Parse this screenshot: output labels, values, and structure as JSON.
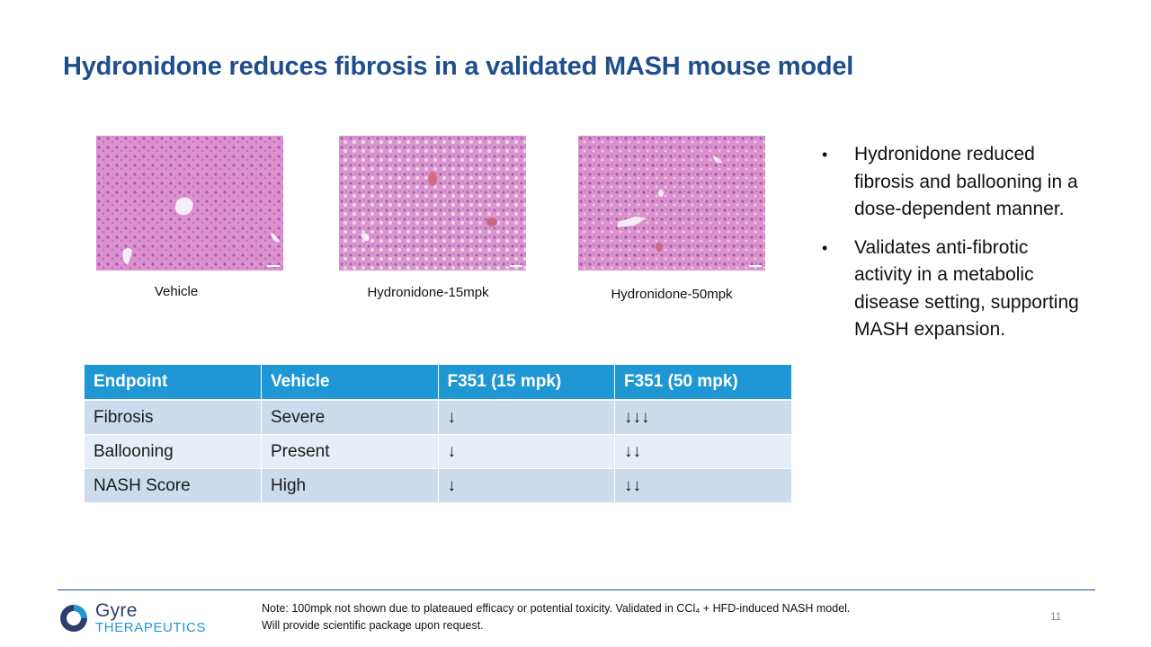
{
  "slide": {
    "title": "Hydronidone reduces fibrosis in a validated MASH mouse model",
    "page_number": "11"
  },
  "images": [
    {
      "caption": "Vehicle",
      "icon": "histology-image"
    },
    {
      "caption": "Hydronidone-15mpk",
      "icon": "histology-image"
    },
    {
      "caption": "Hydronidone-50mpk",
      "icon": "histology-image"
    }
  ],
  "bullets": [
    "Hydronidone reduced fibrosis and ballooning in a dose-dependent manner.",
    "Validates anti-fibrotic activity in a metabolic disease setting, supporting MASH expansion."
  ],
  "table": {
    "headers": [
      "Endpoint",
      "Vehicle",
      "F351 (15 mpk)",
      "F351 (50 mpk)"
    ],
    "rows": [
      [
        "Fibrosis",
        "Severe",
        "↓",
        "↓↓↓"
      ],
      [
        "Ballooning",
        "Present",
        "↓",
        "↓↓"
      ],
      [
        "NASH Score",
        "High",
        "↓",
        "↓↓"
      ]
    ]
  },
  "footer": {
    "logo_name": "Gyre",
    "logo_sub": "THERAPEUTICS",
    "note_line1": "Note: 100mpk not shown due to plateaued efficacy or potential toxicity.  Validated in CCl₄ + HFD-induced NASH model.",
    "note_line2": "Will provide scientific package upon request."
  },
  "colors": {
    "title": "#1f4e8c",
    "table_header": "#1f97d4",
    "row_dark": "#ccdcec",
    "row_light": "#e7eef7",
    "brand_blue": "#1f97d4",
    "brand_navy": "#2d3e6e"
  }
}
